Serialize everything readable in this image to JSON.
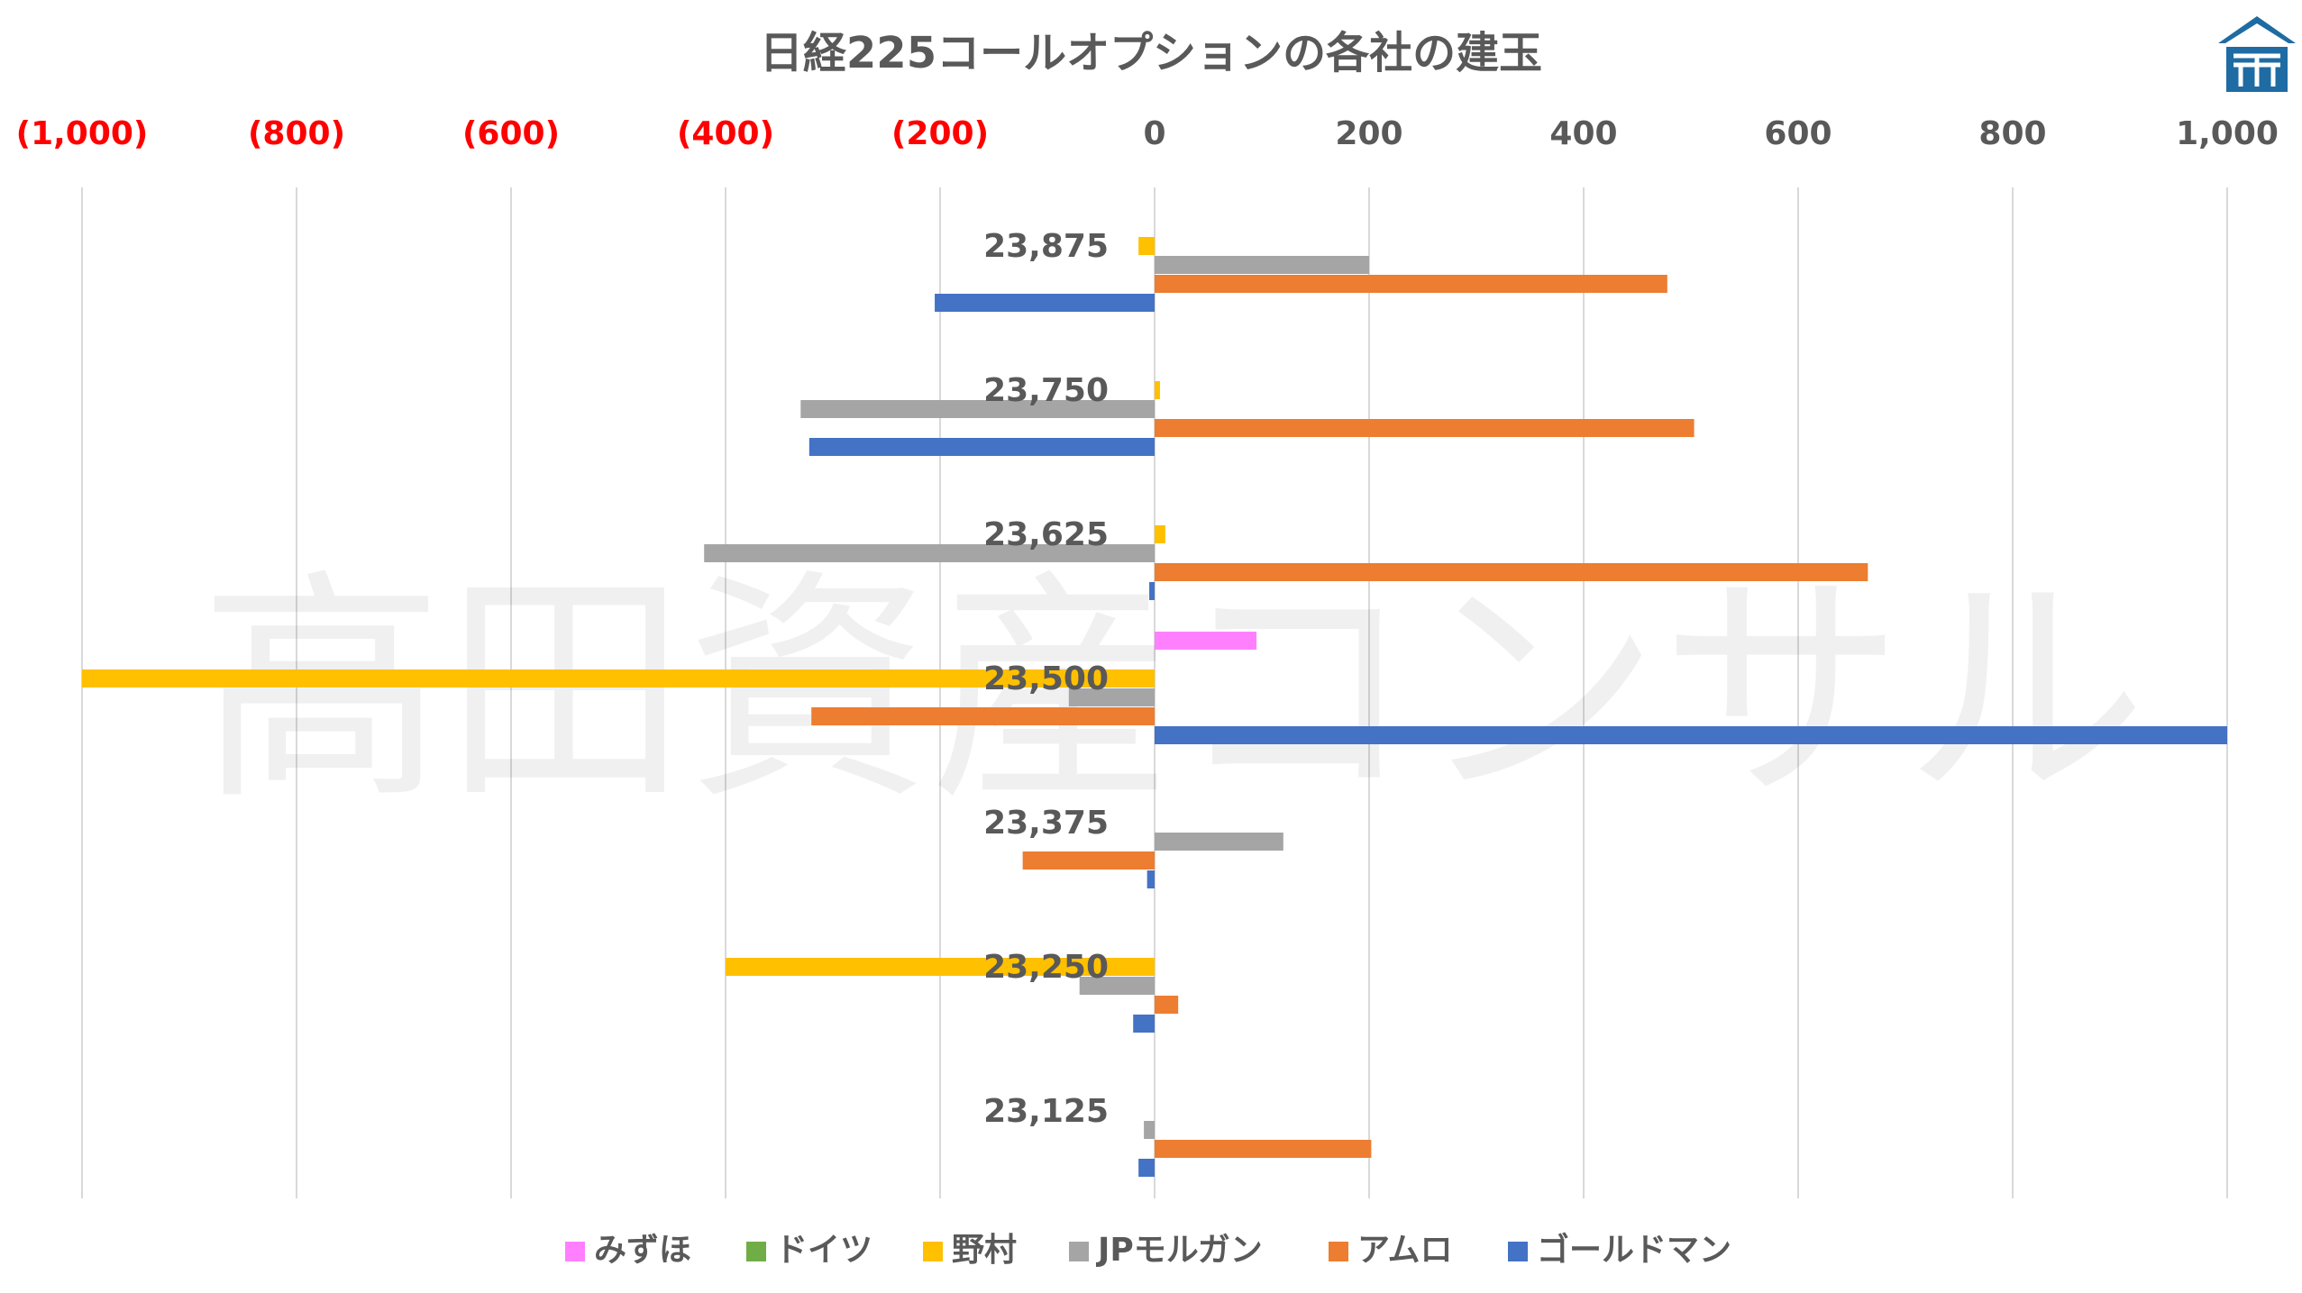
{
  "chart_data": {
    "type": "bar",
    "orientation": "horizontal",
    "title": "日経225コールオプションの各社の建玉",
    "watermark": "高田資産コンサル",
    "logo": "shrine-roof-logo",
    "xlim": [
      -1000,
      1000
    ],
    "x_ticks": [
      {
        "value": -1000,
        "label": "(1,000)",
        "color": "#ff0000"
      },
      {
        "value": -800,
        "label": "(800)",
        "color": "#ff0000"
      },
      {
        "value": -600,
        "label": "(600)",
        "color": "#ff0000"
      },
      {
        "value": -400,
        "label": "(400)",
        "color": "#ff0000"
      },
      {
        "value": -200,
        "label": "(200)",
        "color": "#ff0000"
      },
      {
        "value": 0,
        "label": "0",
        "color": "#595959"
      },
      {
        "value": 200,
        "label": "200",
        "color": "#595959"
      },
      {
        "value": 400,
        "label": "400",
        "color": "#595959"
      },
      {
        "value": 600,
        "label": "600",
        "color": "#595959"
      },
      {
        "value": 800,
        "label": "800",
        "color": "#595959"
      },
      {
        "value": 1000,
        "label": "1,000",
        "color": "#595959"
      }
    ],
    "categories": [
      "23,875",
      "23,750",
      "23,625",
      "23,500",
      "23,375",
      "23,250",
      "23,125"
    ],
    "grid": true,
    "legend_position": "bottom",
    "series": [
      {
        "name": "みずほ",
        "color": "#ff80ff",
        "values": [
          0,
          0,
          0,
          95,
          0,
          0,
          0
        ]
      },
      {
        "name": "ドイツ",
        "color": "#70ad47",
        "values": [
          0,
          0,
          0,
          0,
          0,
          0,
          0
        ]
      },
      {
        "name": "野村",
        "color": "#ffc000",
        "values": [
          -15,
          5,
          10,
          -1000,
          0,
          -400,
          0
        ]
      },
      {
        "name": "JPモルガン",
        "color": "#a5a5a5",
        "values": [
          200,
          -330,
          -420,
          -80,
          120,
          -70,
          -10
        ]
      },
      {
        "name": "アムロ",
        "color": "#ed7d31",
        "values": [
          478,
          503,
          665,
          -320,
          -123,
          22,
          202
        ]
      },
      {
        "name": "ゴールドマン",
        "color": "#4472c4",
        "values": [
          -205,
          -322,
          -5,
          1000,
          -7,
          -20,
          -15
        ]
      }
    ]
  }
}
